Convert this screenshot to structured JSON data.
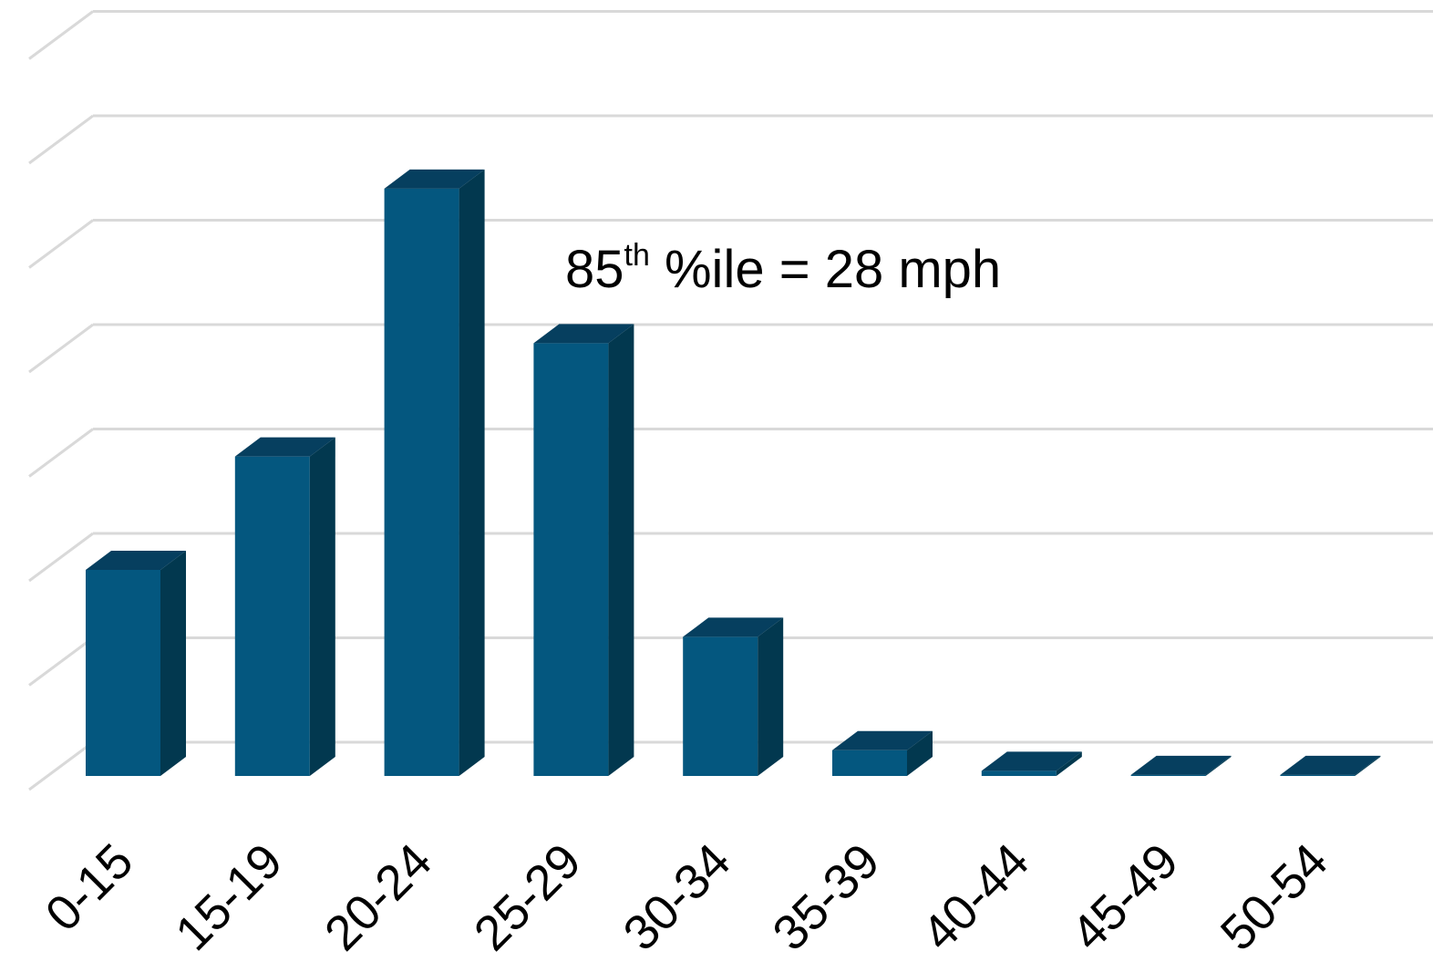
{
  "chart_data": {
    "type": "bar",
    "style": "3d-column",
    "categories": [
      "0-15",
      "15-19",
      "20-24",
      "25-29",
      "30-34",
      "35-39",
      "40-44",
      "45-49",
      "50-54"
    ],
    "values": [
      2.0,
      3.1,
      5.7,
      4.2,
      1.35,
      0.25,
      0.05,
      0.01,
      0.01
    ],
    "ylim": [
      0,
      7.3
    ],
    "grid": true,
    "y_tick_labels_shown": false,
    "annotation": {
      "base": "85",
      "sup": "th",
      "rest": " %ile = 28 mph"
    },
    "colors": {
      "bar_front": "#04577f",
      "bar_top": "#063f5f",
      "bar_side": "#02384f",
      "grid": "#d9d9d9"
    }
  }
}
